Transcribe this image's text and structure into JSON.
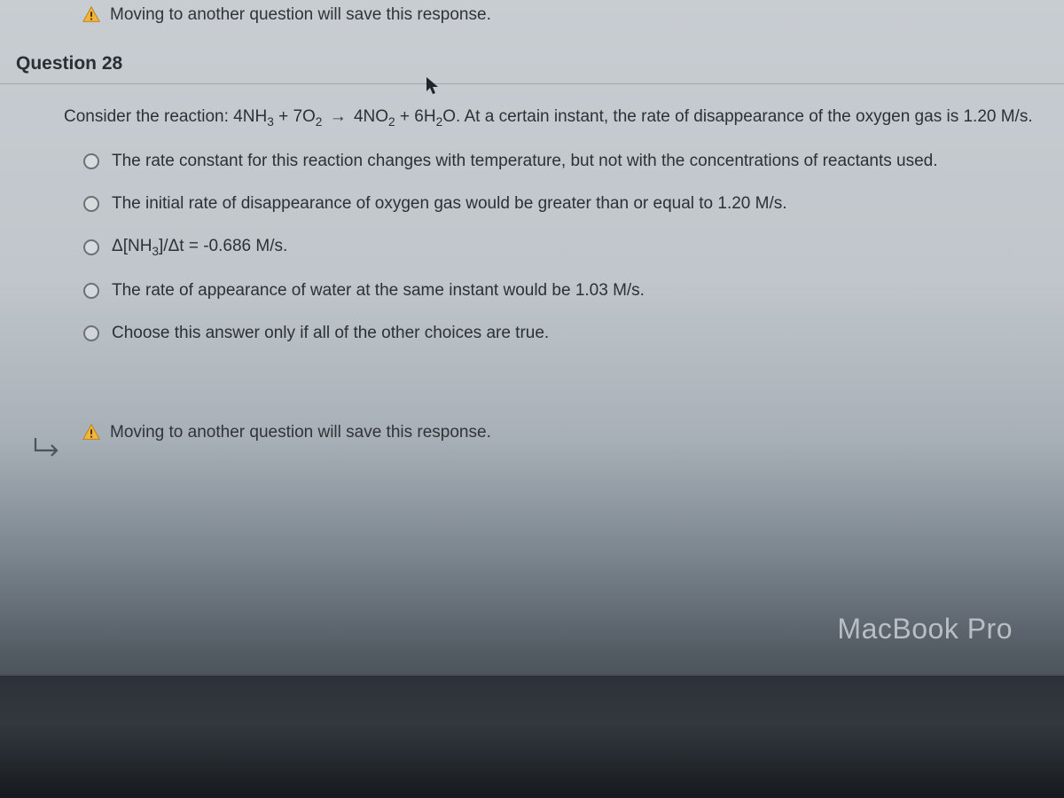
{
  "colors": {
    "text": "#2a2f35",
    "radio_border": "#6a7178",
    "warn_fill": "#f3b43a",
    "warn_stroke": "#b97f13",
    "macbook_text": "#b8bec4"
  },
  "banner": {
    "text": "Moving to another question will save this response."
  },
  "question": {
    "title": "Question 28",
    "stem_prefix": "Consider the reaction: ",
    "reaction_html": "4NH<sub>3</sub> + 7O<sub>2</sub> <span class='arrow'>→</span> 4NO<sub>2</sub> + 6H<sub>2</sub>O",
    "stem_suffix": ". At a certain instant, the rate of disappearance of the oxygen gas is 1.20 M/s.",
    "options": [
      "The rate constant for this reaction changes with temperature, but not with the concentrations of reactants used.",
      "The initial rate of disappearance of oxygen gas would be greater than or equal to 1.20 M/s.",
      "Δ[NH<sub>3</sub>]/Δt = -0.686 M/s.",
      "The rate of appearance of water at the same instant would be 1.03 M/s.",
      "Choose this answer only if all of the other choices are true."
    ]
  },
  "device_label": "MacBook Pro"
}
